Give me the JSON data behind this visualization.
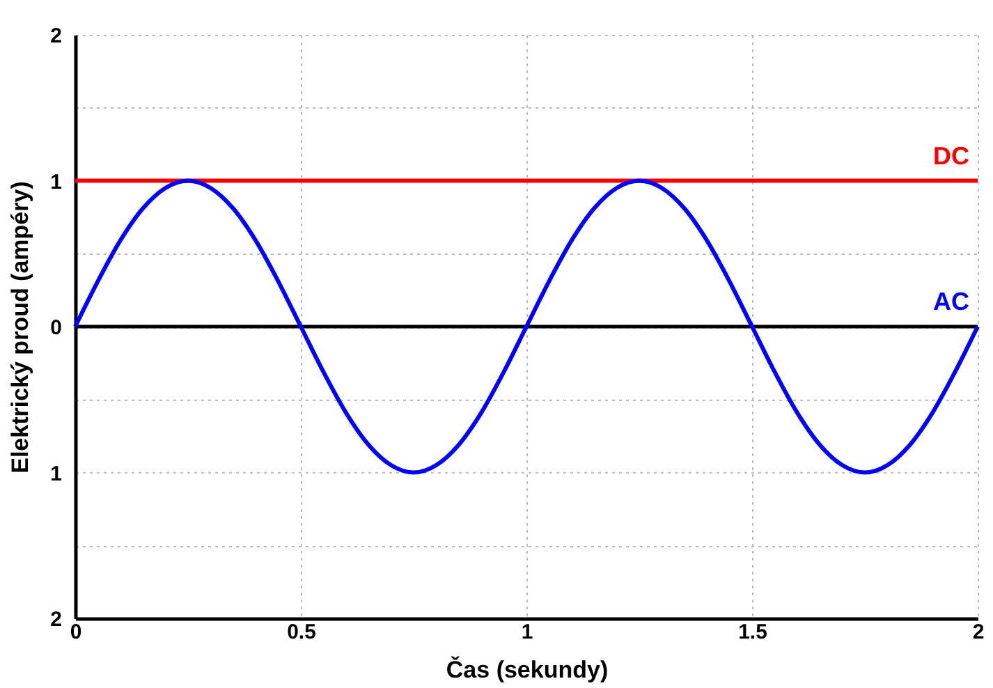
{
  "chart_data": {
    "type": "line",
    "xlabel": "Čas (sekundy)",
    "ylabel": "Elektrický proud (ampéry)",
    "xlim": [
      0,
      2
    ],
    "ylim": [
      -2,
      2
    ],
    "xticks": [
      0,
      0.5,
      1,
      1.5,
      2
    ],
    "yticks": [
      {
        "value": -2,
        "label": "2"
      },
      {
        "value": -1.5,
        "label": null
      },
      {
        "value": -1,
        "label": "1"
      },
      {
        "value": -0.5,
        "label": null
      },
      0,
      {
        "value": 0.5,
        "label": null
      },
      1,
      {
        "value": 1.5,
        "label": null
      },
      2
    ],
    "grid": true,
    "line_style": "solid",
    "marker": "none",
    "ref_lines": [
      {
        "axis": "y",
        "value": 0,
        "color": "#000000"
      }
    ],
    "series": [
      {
        "name": "DC",
        "color": "#ff0000",
        "x": [
          0,
          2
        ],
        "values": [
          1,
          1
        ]
      },
      {
        "name": "AC",
        "color": "#0000ff",
        "x": [
          0,
          0.05,
          0.1,
          0.15,
          0.2,
          0.25,
          0.3,
          0.35,
          0.4,
          0.45,
          0.5,
          0.55,
          0.6,
          0.65,
          0.7,
          0.75,
          0.8,
          0.85,
          0.9,
          0.95,
          1,
          1.05,
          1.1,
          1.15,
          1.2,
          1.25,
          1.3,
          1.35,
          1.4,
          1.45,
          1.5,
          1.55,
          1.6,
          1.65,
          1.7,
          1.75,
          1.8,
          1.85,
          1.9,
          1.95,
          2
        ],
        "values": [
          0,
          0.31,
          0.59,
          0.81,
          0.95,
          1,
          0.95,
          0.81,
          0.59,
          0.31,
          0,
          -0.31,
          -0.59,
          -0.81,
          -0.95,
          -1,
          -0.95,
          -0.81,
          -0.59,
          -0.31,
          0,
          0.31,
          0.59,
          0.81,
          0.95,
          1,
          0.95,
          0.81,
          0.59,
          0.31,
          0,
          -0.31,
          -0.59,
          -0.81,
          -0.95,
          -1,
          -0.95,
          -0.81,
          -0.59,
          -0.31,
          0
        ]
      }
    ]
  }
}
